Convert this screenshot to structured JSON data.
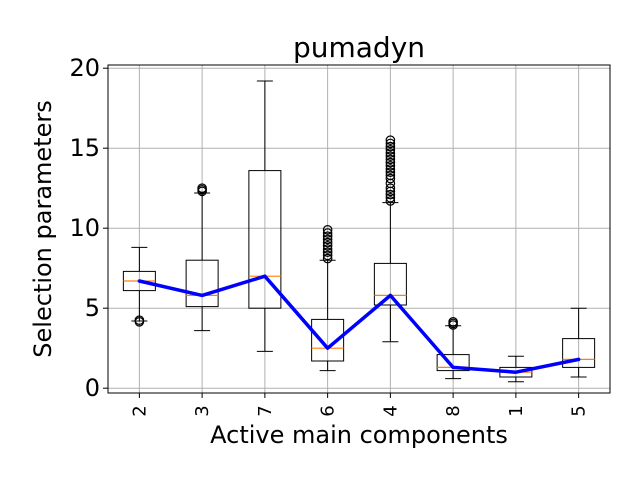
{
  "chart_data": {
    "type": "box",
    "title": "pumadyn",
    "xlabel": "Active main components",
    "ylabel": "Selection parameters",
    "categories": [
      "2",
      "3",
      "7",
      "6",
      "4",
      "8",
      "1",
      "5"
    ],
    "ylim": [
      -0.3,
      20.2
    ],
    "yticks": [
      0,
      5,
      10,
      15,
      20
    ],
    "grid": true,
    "boxes": [
      {
        "whisker_low": 4.2,
        "q1": 6.1,
        "median": 6.7,
        "q3": 7.3,
        "whisker_high": 8.8,
        "outliers": [
          4.15,
          4.25
        ]
      },
      {
        "whisker_low": 3.6,
        "q1": 5.1,
        "median": 5.8,
        "q3": 8.0,
        "whisker_high": 12.2,
        "outliers": [
          12.3,
          12.4,
          12.5
        ]
      },
      {
        "whisker_low": 2.3,
        "q1": 5.0,
        "median": 7.0,
        "q3": 13.6,
        "whisker_high": 19.2,
        "outliers": []
      },
      {
        "whisker_low": 1.1,
        "q1": 1.7,
        "median": 2.5,
        "q3": 4.3,
        "whisker_high": 8.0,
        "outliers": [
          8.1,
          8.3,
          8.5,
          8.7,
          8.9,
          9.1,
          9.3,
          9.5,
          9.7,
          9.9
        ]
      },
      {
        "whisker_low": 2.9,
        "q1": 5.2,
        "median": 5.8,
        "q3": 7.8,
        "whisker_high": 11.6,
        "outliers": [
          11.7,
          11.9,
          12.1,
          12.3,
          12.5,
          12.8,
          13.1,
          13.3,
          13.5,
          13.7,
          13.9,
          14.1,
          14.3,
          14.5,
          14.7,
          14.9,
          15.1,
          15.3,
          15.5
        ]
      },
      {
        "whisker_low": 0.6,
        "q1": 1.1,
        "median": 1.3,
        "q3": 2.1,
        "whisker_high": 3.9,
        "outliers": [
          3.95,
          4.05,
          4.15
        ]
      },
      {
        "whisker_low": 0.4,
        "q1": 0.7,
        "median": 1.0,
        "q3": 1.3,
        "whisker_high": 2.0,
        "outliers": []
      },
      {
        "whisker_low": 0.7,
        "q1": 1.3,
        "median": 1.8,
        "q3": 3.1,
        "whisker_high": 5.0,
        "outliers": []
      }
    ],
    "line": {
      "values": [
        6.7,
        5.8,
        7.0,
        2.5,
        5.8,
        1.3,
        1.0,
        1.8
      ]
    },
    "colors": {
      "box": "#000000",
      "median": "#ff7f0e",
      "line": "#0000ff",
      "grid": "#b0b0b0"
    }
  }
}
